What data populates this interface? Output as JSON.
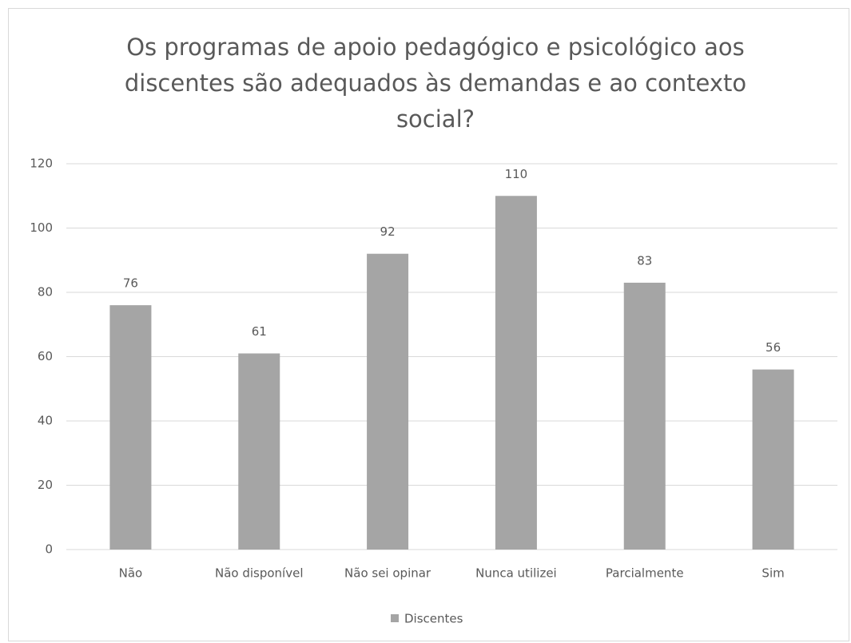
{
  "chart_data": {
    "type": "bar",
    "title": "Os programas de apoio pedagógico e psicológico aos discentes são adequados às demandas e ao contexto social?",
    "categories": [
      "Não",
      "Não disponível",
      "Não sei opinar",
      "Nunca utilizei",
      "Parcialmente",
      "Sim"
    ],
    "series": [
      {
        "name": "Discentes",
        "color": "#a5a5a5",
        "values": [
          76,
          61,
          92,
          110,
          83,
          56
        ]
      }
    ],
    "ylim": [
      0,
      120
    ],
    "yticks": [
      0,
      20,
      40,
      60,
      80,
      100,
      120
    ],
    "grid": true,
    "legend": "bottom"
  }
}
